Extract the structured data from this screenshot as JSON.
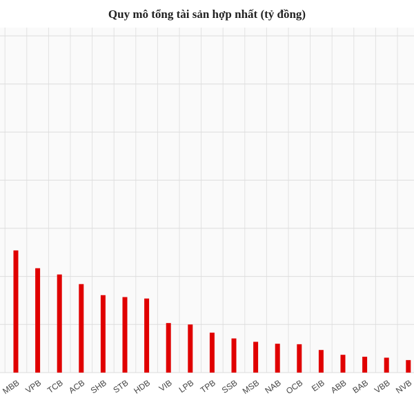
{
  "chart_data": {
    "type": "bar",
    "title": "Quy mô tổng tài sản hợp nhất (tỷ đồng)",
    "categories": [
      "MBB",
      "VPB",
      "TCB",
      "ACB",
      "SHB",
      "STB",
      "HDB",
      "VIB",
      "LPB",
      "TPB",
      "SSB",
      "MSB",
      "NAB",
      "OCB",
      "EIB",
      "ABB",
      "BAB",
      "VBB",
      "NVB"
    ],
    "values": [
      2.54,
      2.17,
      2.04,
      1.84,
      1.61,
      1.57,
      1.54,
      1.03,
      1.0,
      0.83,
      0.71,
      0.64,
      0.6,
      0.59,
      0.47,
      0.37,
      0.33,
      0.31,
      0.26
    ],
    "color": "#e00000",
    "ylim": [
      0,
      7
    ],
    "yticks": [
      0,
      1,
      2,
      3,
      4,
      5,
      6,
      7
    ],
    "grid": true
  }
}
